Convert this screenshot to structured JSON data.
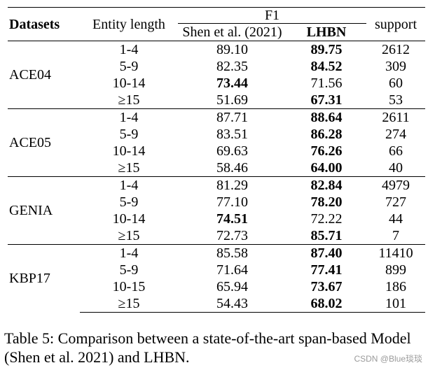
{
  "table": {
    "headers": {
      "datasets": "Datasets",
      "entity_length": "Entity length",
      "f1": "F1",
      "shen": "Shen et al. (2021)",
      "lhbn": "LHBN",
      "support": "support"
    },
    "groups": [
      {
        "dataset": "ACE04",
        "rows": [
          {
            "len": "1-4",
            "shen": "89.10",
            "lhbn": "89.75",
            "support": "2612",
            "best": "lhbn"
          },
          {
            "len": "5-9",
            "shen": "82.35",
            "lhbn": "84.52",
            "support": "309",
            "best": "lhbn"
          },
          {
            "len": "10-14",
            "shen": "73.44",
            "lhbn": "71.56",
            "support": "60",
            "best": "shen"
          },
          {
            "len": "≥15",
            "shen": "51.69",
            "lhbn": "67.31",
            "support": "53",
            "best": "lhbn"
          }
        ]
      },
      {
        "dataset": "ACE05",
        "rows": [
          {
            "len": "1-4",
            "shen": "87.71",
            "lhbn": "88.64",
            "support": "2611",
            "best": "lhbn"
          },
          {
            "len": "5-9",
            "shen": "83.51",
            "lhbn": "86.28",
            "support": "274",
            "best": "lhbn"
          },
          {
            "len": "10-14",
            "shen": "69.63",
            "lhbn": "76.26",
            "support": "66",
            "best": "lhbn"
          },
          {
            "len": "≥15",
            "shen": "58.46",
            "lhbn": "64.00",
            "support": "40",
            "best": "lhbn"
          }
        ]
      },
      {
        "dataset": "GENIA",
        "rows": [
          {
            "len": "1-4",
            "shen": "81.29",
            "lhbn": "82.84",
            "support": "4979",
            "best": "lhbn"
          },
          {
            "len": "5-9",
            "shen": "77.10",
            "lhbn": "78.20",
            "support": "727",
            "best": "lhbn"
          },
          {
            "len": "10-14",
            "shen": "74.51",
            "lhbn": "72.22",
            "support": "44",
            "best": "shen"
          },
          {
            "len": "≥15",
            "shen": "72.73",
            "lhbn": "85.71",
            "support": "7",
            "best": "lhbn"
          }
        ]
      },
      {
        "dataset": "KBP17",
        "rows": [
          {
            "len": "1-4",
            "shen": "85.58",
            "lhbn": "87.40",
            "support": "11410",
            "best": "lhbn"
          },
          {
            "len": "5-9",
            "shen": "71.64",
            "lhbn": "77.41",
            "support": "899",
            "best": "lhbn"
          },
          {
            "len": "10-15",
            "shen": "65.94",
            "lhbn": "73.67",
            "support": "186",
            "best": "lhbn"
          },
          {
            "len": "≥15",
            "shen": "54.43",
            "lhbn": "68.02",
            "support": "101",
            "best": "lhbn"
          }
        ]
      }
    ]
  },
  "caption": "Table 5: Comparison between a state-of-the-art span-based Model (Shen et al. 2021) and LHBN.",
  "watermark": "CSDN @Blue琰琰"
}
